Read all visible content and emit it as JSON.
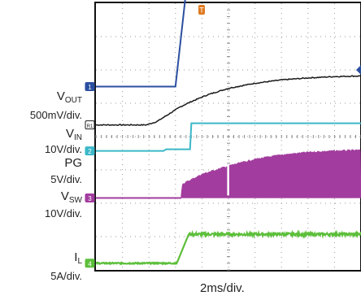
{
  "chart_data": {
    "type": "line",
    "title": "",
    "xlabel": "2ms/div.",
    "ylabel": "",
    "grid": true,
    "divisions": {
      "x": 10,
      "y": 8
    },
    "trigger_marker": "T",
    "series": [
      {
        "name": "V_OUT",
        "label_main": "V",
        "label_sub": "OUT",
        "scale": "500mV/div.",
        "channel": "1",
        "color": "#2b4fa0",
        "kind": "step",
        "x": [
          0,
          3.0,
          3.45,
          10
        ],
        "y": [
          5.5,
          5.5,
          8.7,
          8.7
        ]
      },
      {
        "name": "V_IN",
        "label_main": "V",
        "label_sub": "IN",
        "scale": "10V/div.",
        "channel": "R1",
        "color": "#1a1a1a",
        "kind": "curve",
        "x": [
          0,
          1.9,
          2.3,
          2.7,
          3.2,
          3.6,
          4.2,
          5.0,
          6.0,
          7.0,
          8.0,
          9.0,
          10
        ],
        "y": [
          4.35,
          4.35,
          4.45,
          4.65,
          4.9,
          5.05,
          5.25,
          5.45,
          5.6,
          5.7,
          5.76,
          5.8,
          5.82
        ]
      },
      {
        "name": "PG",
        "label_main": "PG",
        "label_sub": "",
        "scale": "5V/div.",
        "channel": "2",
        "color": "#3bb8c8",
        "kind": "step",
        "x": [
          0,
          2.55,
          2.65,
          3.55,
          3.6,
          10
        ],
        "y": [
          3.57,
          3.57,
          3.62,
          3.62,
          4.4,
          4.4
        ]
      },
      {
        "name": "V_SW",
        "label_main": "V",
        "label_sub": "SW",
        "scale": "10V/div.",
        "channel": "3",
        "color": "#a23c9e",
        "kind": "switching",
        "x": [
          0,
          3.2,
          3.25,
          4.0,
          5.0,
          6.0,
          7.0,
          8.0,
          9.0,
          10
        ],
        "y": [
          2.16,
          2.16,
          2.6,
          2.9,
          3.15,
          3.35,
          3.48,
          3.56,
          3.6,
          3.62
        ]
      },
      {
        "name": "I_L",
        "label_main": "I",
        "label_sub": "L",
        "scale": "5A/div.",
        "channel": "4",
        "color": "#5cbf3a",
        "kind": "noisy_step",
        "x": [
          0,
          3.05,
          3.5,
          10
        ],
        "y": [
          0.2,
          0.2,
          1.07,
          1.07
        ]
      }
    ]
  }
}
